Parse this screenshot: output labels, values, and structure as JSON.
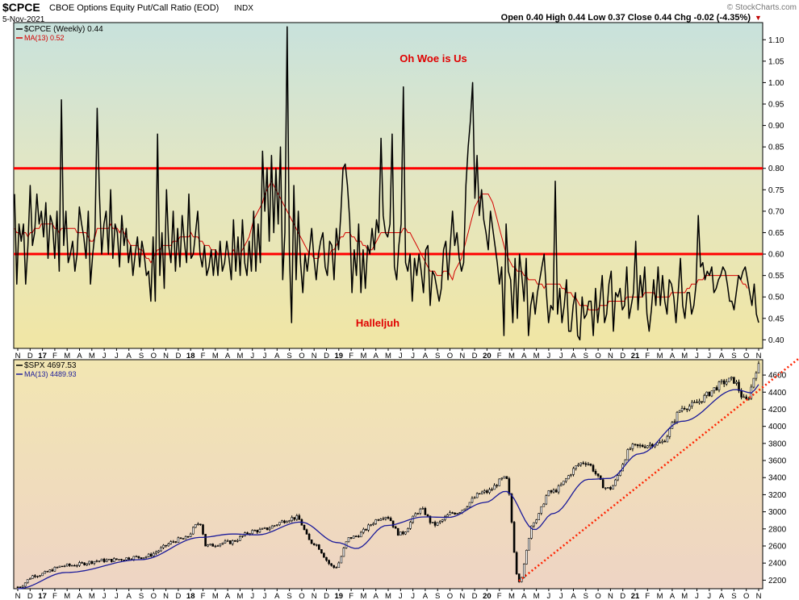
{
  "header": {
    "symbol": "$CPCE",
    "name": "CBOE Options Equity Put/Call Ratio (EOD)",
    "exchange": "INDX",
    "date": "5-Nov-2021",
    "ohlc": "Open 0.40  High 0.44  Low 0.37  Close 0.44  Chg -0.02 (-4.35%)",
    "chg_marker": "▼",
    "watermark": "© StockCharts.com"
  },
  "colors": {
    "price": "#000000",
    "ma": "#d40000",
    "spx_ma": "#1a1a9a",
    "hline": "#ff0000",
    "annotation": "#e00000",
    "trend": "#ff2200"
  },
  "chart_data": [
    {
      "type": "line",
      "title": "CBOE Options Equity Put/Call Ratio (EOD)",
      "legend": [
        {
          "label": "$CPCE (Weekly) 0.44",
          "color": "#000000"
        },
        {
          "label": "MA(13) 0.52",
          "color": "#d40000"
        }
      ],
      "legend_placement": "top-left",
      "ylim": [
        0.38,
        1.14
      ],
      "yticks": [
        0.4,
        0.45,
        0.5,
        0.55,
        0.6,
        0.65,
        0.7,
        0.75,
        0.8,
        0.85,
        0.9,
        0.95,
        1.0,
        1.05,
        1.1
      ],
      "x_months": [
        "N",
        "D",
        "17",
        "F",
        "M",
        "A",
        "M",
        "J",
        "J",
        "A",
        "S",
        "O",
        "N",
        "D",
        "18",
        "F",
        "M",
        "A",
        "M",
        "J",
        "J",
        "A",
        "S",
        "O",
        "N",
        "D",
        "19",
        "F",
        "M",
        "A",
        "M",
        "J",
        "J",
        "A",
        "S",
        "O",
        "N",
        "D",
        "20",
        "F",
        "M",
        "A",
        "M",
        "J",
        "J",
        "A",
        "S",
        "O",
        "N",
        "D",
        "21",
        "F",
        "M",
        "A",
        "M",
        "J",
        "J",
        "A",
        "S",
        "O",
        "N"
      ],
      "horizontal_lines": [
        0.8,
        0.6
      ],
      "annotations": [
        {
          "text": "Oh Woe is Us",
          "near_y": 1.07
        },
        {
          "text": "Halleljuh",
          "near_y": 0.47
        }
      ],
      "series_weekly": [
        0.74,
        0.53,
        0.67,
        0.63,
        0.67,
        0.53,
        0.62,
        0.76,
        0.62,
        0.65,
        0.74,
        0.67,
        0.7,
        0.64,
        0.72,
        0.59,
        0.69,
        0.67,
        0.59,
        0.7,
        0.56,
        0.96,
        0.62,
        0.7,
        0.58,
        0.6,
        0.63,
        0.56,
        0.6,
        0.71,
        0.67,
        0.64,
        0.59,
        0.7,
        0.53,
        0.6,
        0.65,
        0.94,
        0.74,
        0.6,
        0.67,
        0.7,
        0.6,
        0.75,
        0.59,
        0.67,
        0.65,
        0.57,
        0.69,
        0.62,
        0.66,
        0.58,
        0.62,
        0.55,
        0.6,
        0.64,
        0.57,
        0.63,
        0.6,
        0.55,
        0.56,
        0.49,
        0.64,
        0.49,
        0.88,
        0.55,
        0.65,
        0.52,
        0.75,
        0.62,
        0.58,
        0.7,
        0.56,
        0.66,
        0.57,
        0.69,
        0.63,
        0.58,
        0.74,
        0.59,
        0.6,
        0.65,
        0.7,
        0.6,
        0.57,
        0.62,
        0.55,
        0.57,
        0.61,
        0.55,
        0.61,
        0.55,
        0.63,
        0.56,
        0.58,
        0.63,
        0.59,
        0.54,
        0.68,
        0.56,
        0.64,
        0.55,
        0.68,
        0.58,
        0.55,
        0.63,
        0.56,
        0.7,
        0.56,
        0.67,
        0.58,
        0.84,
        0.7,
        0.8,
        0.63,
        0.83,
        0.65,
        0.8,
        0.67,
        0.85,
        0.54,
        0.65,
        1.13,
        0.6,
        0.44,
        0.76,
        0.54,
        0.7,
        0.58,
        0.51,
        0.6,
        0.56,
        0.61,
        0.66,
        0.59,
        0.54,
        0.6,
        0.63,
        0.65,
        0.57,
        0.55,
        0.63,
        0.62,
        0.54,
        0.66,
        0.61,
        0.69,
        0.8,
        0.81,
        0.76,
        0.68,
        0.51,
        0.61,
        0.55,
        0.67,
        0.51,
        0.61,
        0.52,
        0.62,
        0.6,
        0.66,
        0.61,
        0.68,
        0.65,
        0.87,
        0.69,
        0.65,
        0.64,
        0.67,
        0.88,
        0.57,
        0.54,
        0.62,
        0.67,
        0.99,
        0.58,
        0.56,
        0.6,
        0.49,
        0.59,
        0.55,
        0.6,
        0.56,
        0.51,
        0.61,
        0.62,
        0.48,
        0.56,
        0.55,
        0.52,
        0.49,
        0.52,
        0.61,
        0.63,
        0.54,
        0.62,
        0.7,
        0.62,
        0.65,
        0.59,
        0.56,
        0.58,
        0.76,
        0.85,
        0.91,
        1.0,
        0.73,
        0.83,
        0.69,
        0.75,
        0.68,
        0.65,
        0.61,
        0.7,
        0.66,
        0.62,
        0.58,
        0.53,
        0.57,
        0.41,
        0.67,
        0.56,
        0.54,
        0.44,
        0.59,
        0.45,
        0.6,
        0.55,
        0.49,
        0.59,
        0.41,
        0.48,
        0.51,
        0.46,
        0.51,
        0.54,
        0.57,
        0.6,
        0.51,
        0.44,
        0.48,
        0.47,
        0.77,
        0.46,
        0.52,
        0.44,
        0.48,
        0.54,
        0.42,
        0.42,
        0.48,
        0.51,
        0.41,
        0.4,
        0.5,
        0.45,
        0.46,
        0.49,
        0.49,
        0.41,
        0.52,
        0.44,
        0.49,
        0.55,
        0.44,
        0.46,
        0.53,
        0.56,
        0.42,
        0.51,
        0.5,
        0.52,
        0.47,
        0.48,
        0.57,
        0.45,
        0.48,
        0.51,
        0.63,
        0.47,
        0.55,
        0.5,
        0.57,
        0.46,
        0.42,
        0.47,
        0.54,
        0.48,
        0.57,
        0.48,
        0.55,
        0.49,
        0.46,
        0.54,
        0.53,
        0.5,
        0.44,
        0.51,
        0.59,
        0.48,
        0.45,
        0.51,
        0.51,
        0.46,
        0.48,
        0.53,
        0.69,
        0.57,
        0.58,
        0.54,
        0.56,
        0.55,
        0.57,
        0.51,
        0.52,
        0.54,
        0.55,
        0.57,
        0.56,
        0.53,
        0.49,
        0.49,
        0.47,
        0.51,
        0.55,
        0.54,
        0.56,
        0.57,
        0.54,
        0.51,
        0.48,
        0.53,
        0.46,
        0.44
      ],
      "series_ma13": [
        0.66,
        0.65,
        0.65,
        0.64,
        0.65,
        0.65,
        0.64,
        0.65,
        0.65,
        0.66,
        0.66,
        0.66,
        0.67,
        0.67,
        0.67,
        0.67,
        0.67,
        0.67,
        0.66,
        0.66,
        0.65,
        0.66,
        0.66,
        0.66,
        0.66,
        0.66,
        0.66,
        0.66,
        0.65,
        0.65,
        0.65,
        0.65,
        0.65,
        0.64,
        0.63,
        0.63,
        0.64,
        0.66,
        0.66,
        0.66,
        0.66,
        0.66,
        0.66,
        0.67,
        0.66,
        0.66,
        0.66,
        0.65,
        0.66,
        0.65,
        0.64,
        0.63,
        0.62,
        0.62,
        0.62,
        0.62,
        0.61,
        0.61,
        0.6,
        0.59,
        0.59,
        0.58,
        0.59,
        0.6,
        0.61,
        0.61,
        0.62,
        0.62,
        0.62,
        0.62,
        0.62,
        0.63,
        0.63,
        0.63,
        0.64,
        0.64,
        0.64,
        0.64,
        0.64,
        0.65,
        0.64,
        0.64,
        0.64,
        0.63,
        0.63,
        0.62,
        0.62,
        0.62,
        0.61,
        0.61,
        0.61,
        0.6,
        0.6,
        0.6,
        0.6,
        0.6,
        0.6,
        0.6,
        0.61,
        0.6,
        0.6,
        0.6,
        0.61,
        0.62,
        0.63,
        0.64,
        0.66,
        0.68,
        0.69,
        0.7,
        0.71,
        0.72,
        0.74,
        0.75,
        0.76,
        0.77,
        0.76,
        0.75,
        0.74,
        0.73,
        0.72,
        0.71,
        0.7,
        0.69,
        0.68,
        0.67,
        0.66,
        0.65,
        0.64,
        0.63,
        0.62,
        0.61,
        0.6,
        0.6,
        0.59,
        0.59,
        0.59,
        0.6,
        0.6,
        0.6,
        0.6,
        0.6,
        0.61,
        0.61,
        0.62,
        0.63,
        0.64,
        0.64,
        0.65,
        0.65,
        0.65,
        0.64,
        0.64,
        0.63,
        0.63,
        0.63,
        0.62,
        0.62,
        0.61,
        0.61,
        0.61,
        0.62,
        0.63,
        0.64,
        0.65,
        0.65,
        0.65,
        0.65,
        0.65,
        0.65,
        0.65,
        0.65,
        0.65,
        0.65,
        0.66,
        0.66,
        0.65,
        0.65,
        0.64,
        0.63,
        0.62,
        0.61,
        0.6,
        0.59,
        0.58,
        0.57,
        0.56,
        0.56,
        0.56,
        0.55,
        0.55,
        0.55,
        0.56,
        0.56,
        0.56,
        0.55,
        0.54,
        0.56,
        0.57,
        0.58,
        0.59,
        0.61,
        0.63,
        0.65,
        0.67,
        0.69,
        0.71,
        0.72,
        0.73,
        0.74,
        0.74,
        0.74,
        0.74,
        0.73,
        0.72,
        0.7,
        0.68,
        0.66,
        0.64,
        0.62,
        0.6,
        0.59,
        0.58,
        0.57,
        0.57,
        0.56,
        0.56,
        0.56,
        0.55,
        0.55,
        0.54,
        0.54,
        0.54,
        0.54,
        0.53,
        0.53,
        0.53,
        0.52,
        0.53,
        0.53,
        0.53,
        0.53,
        0.53,
        0.53,
        0.53,
        0.52,
        0.52,
        0.51,
        0.51,
        0.51,
        0.5,
        0.5,
        0.49,
        0.48,
        0.48,
        0.48,
        0.48,
        0.47,
        0.47,
        0.47,
        0.47,
        0.47,
        0.48,
        0.48,
        0.48,
        0.48,
        0.49,
        0.49,
        0.49,
        0.49,
        0.49,
        0.49,
        0.49,
        0.49,
        0.5,
        0.5,
        0.5,
        0.5,
        0.5,
        0.5,
        0.5,
        0.5,
        0.51,
        0.51,
        0.51,
        0.51,
        0.51,
        0.5,
        0.5,
        0.5,
        0.5,
        0.5,
        0.5,
        0.5,
        0.51,
        0.51,
        0.51,
        0.51,
        0.51,
        0.51,
        0.51,
        0.52,
        0.52,
        0.53,
        0.53,
        0.53,
        0.54,
        0.54,
        0.54,
        0.55,
        0.55,
        0.55,
        0.55,
        0.55,
        0.55,
        0.55,
        0.55,
        0.55,
        0.55,
        0.55,
        0.55,
        0.55,
        0.55,
        0.55,
        0.55,
        0.54,
        0.53,
        0.53,
        0.52
      ]
    },
    {
      "type": "line",
      "title": "$SPX",
      "legend": [
        {
          "label": "$SPX 4697.53",
          "color": "#000000"
        },
        {
          "label": "MA(13) 4489.93",
          "color": "#1a1a9a"
        }
      ],
      "legend_placement": "top-left",
      "ylim": [
        2100,
        4780
      ],
      "yticks": [
        2200,
        2400,
        2600,
        2800,
        3000,
        3200,
        3400,
        3600,
        3800,
        4000,
        4200,
        4400,
        4600
      ],
      "x_months": [
        "N",
        "D",
        "17",
        "F",
        "M",
        "A",
        "M",
        "J",
        "J",
        "A",
        "S",
        "O",
        "N",
        "D",
        "18",
        "F",
        "M",
        "A",
        "M",
        "J",
        "J",
        "A",
        "S",
        "O",
        "N",
        "D",
        "19",
        "F",
        "M",
        "A",
        "M",
        "J",
        "J",
        "A",
        "S",
        "O",
        "N",
        "D",
        "20",
        "F",
        "M",
        "A",
        "M",
        "J",
        "J",
        "A",
        "S",
        "O",
        "N",
        "D",
        "21",
        "F",
        "M",
        "A",
        "M",
        "J",
        "J",
        "A",
        "S",
        "O",
        "N"
      ],
      "keypoints": [
        {
          "date": "2016-11-01",
          "value": 2120
        },
        {
          "date": "2016-12-15",
          "value": 2260
        },
        {
          "date": "2017-03-01",
          "value": 2370
        },
        {
          "date": "2017-06-01",
          "value": 2430
        },
        {
          "date": "2017-09-01",
          "value": 2470
        },
        {
          "date": "2017-12-15",
          "value": 2680
        },
        {
          "date": "2018-01-26",
          "value": 2870
        },
        {
          "date": "2018-02-09",
          "value": 2600
        },
        {
          "date": "2018-04-01",
          "value": 2640
        },
        {
          "date": "2018-06-15",
          "value": 2780
        },
        {
          "date": "2018-09-20",
          "value": 2930
        },
        {
          "date": "2018-10-29",
          "value": 2640
        },
        {
          "date": "2018-12-24",
          "value": 2350
        },
        {
          "date": "2019-02-01",
          "value": 2700
        },
        {
          "date": "2019-04-30",
          "value": 2950
        },
        {
          "date": "2019-06-03",
          "value": 2740
        },
        {
          "date": "2019-07-26",
          "value": 3020
        },
        {
          "date": "2019-08-26",
          "value": 2850
        },
        {
          "date": "2019-10-15",
          "value": 2990
        },
        {
          "date": "2019-12-31",
          "value": 3230
        },
        {
          "date": "2020-02-19",
          "value": 3390
        },
        {
          "date": "2020-03-23",
          "value": 2200
        },
        {
          "date": "2020-04-30",
          "value": 2900
        },
        {
          "date": "2020-06-08",
          "value": 3230
        },
        {
          "date": "2020-09-02",
          "value": 3580
        },
        {
          "date": "2020-10-30",
          "value": 3270
        },
        {
          "date": "2020-12-31",
          "value": 3760
        },
        {
          "date": "2021-03-04",
          "value": 3800
        },
        {
          "date": "2021-05-07",
          "value": 4230
        },
        {
          "date": "2021-09-02",
          "value": 4540
        },
        {
          "date": "2021-10-04",
          "value": 4300
        },
        {
          "date": "2021-11-05",
          "value": 4700
        }
      ],
      "ma_keypoints": [
        {
          "date": "2016-11-01",
          "value": 2100
        },
        {
          "date": "2017-03-01",
          "value": 2290
        },
        {
          "date": "2017-09-01",
          "value": 2440
        },
        {
          "date": "2018-01-26",
          "value": 2700
        },
        {
          "date": "2018-04-15",
          "value": 2740
        },
        {
          "date": "2018-06-15",
          "value": 2730
        },
        {
          "date": "2018-10-01",
          "value": 2880
        },
        {
          "date": "2018-12-31",
          "value": 2640
        },
        {
          "date": "2019-02-15",
          "value": 2570
        },
        {
          "date": "2019-05-01",
          "value": 2840
        },
        {
          "date": "2019-08-01",
          "value": 2940
        },
        {
          "date": "2019-10-01",
          "value": 2935
        },
        {
          "date": "2019-12-31",
          "value": 3110
        },
        {
          "date": "2020-02-19",
          "value": 3240
        },
        {
          "date": "2020-05-01",
          "value": 2790
        },
        {
          "date": "2020-06-15",
          "value": 2980
        },
        {
          "date": "2020-09-10",
          "value": 3380
        },
        {
          "date": "2020-11-01",
          "value": 3390
        },
        {
          "date": "2021-01-15",
          "value": 3680
        },
        {
          "date": "2021-05-01",
          "value": 4060
        },
        {
          "date": "2021-09-10",
          "value": 4430
        },
        {
          "date": "2021-10-20",
          "value": 4390
        },
        {
          "date": "2021-11-05",
          "value": 4490
        }
      ],
      "trendline": [
        {
          "date": "2020-03-23",
          "value": 2190
        },
        {
          "date": "2021-11-05",
          "value": 4420
        }
      ]
    }
  ]
}
